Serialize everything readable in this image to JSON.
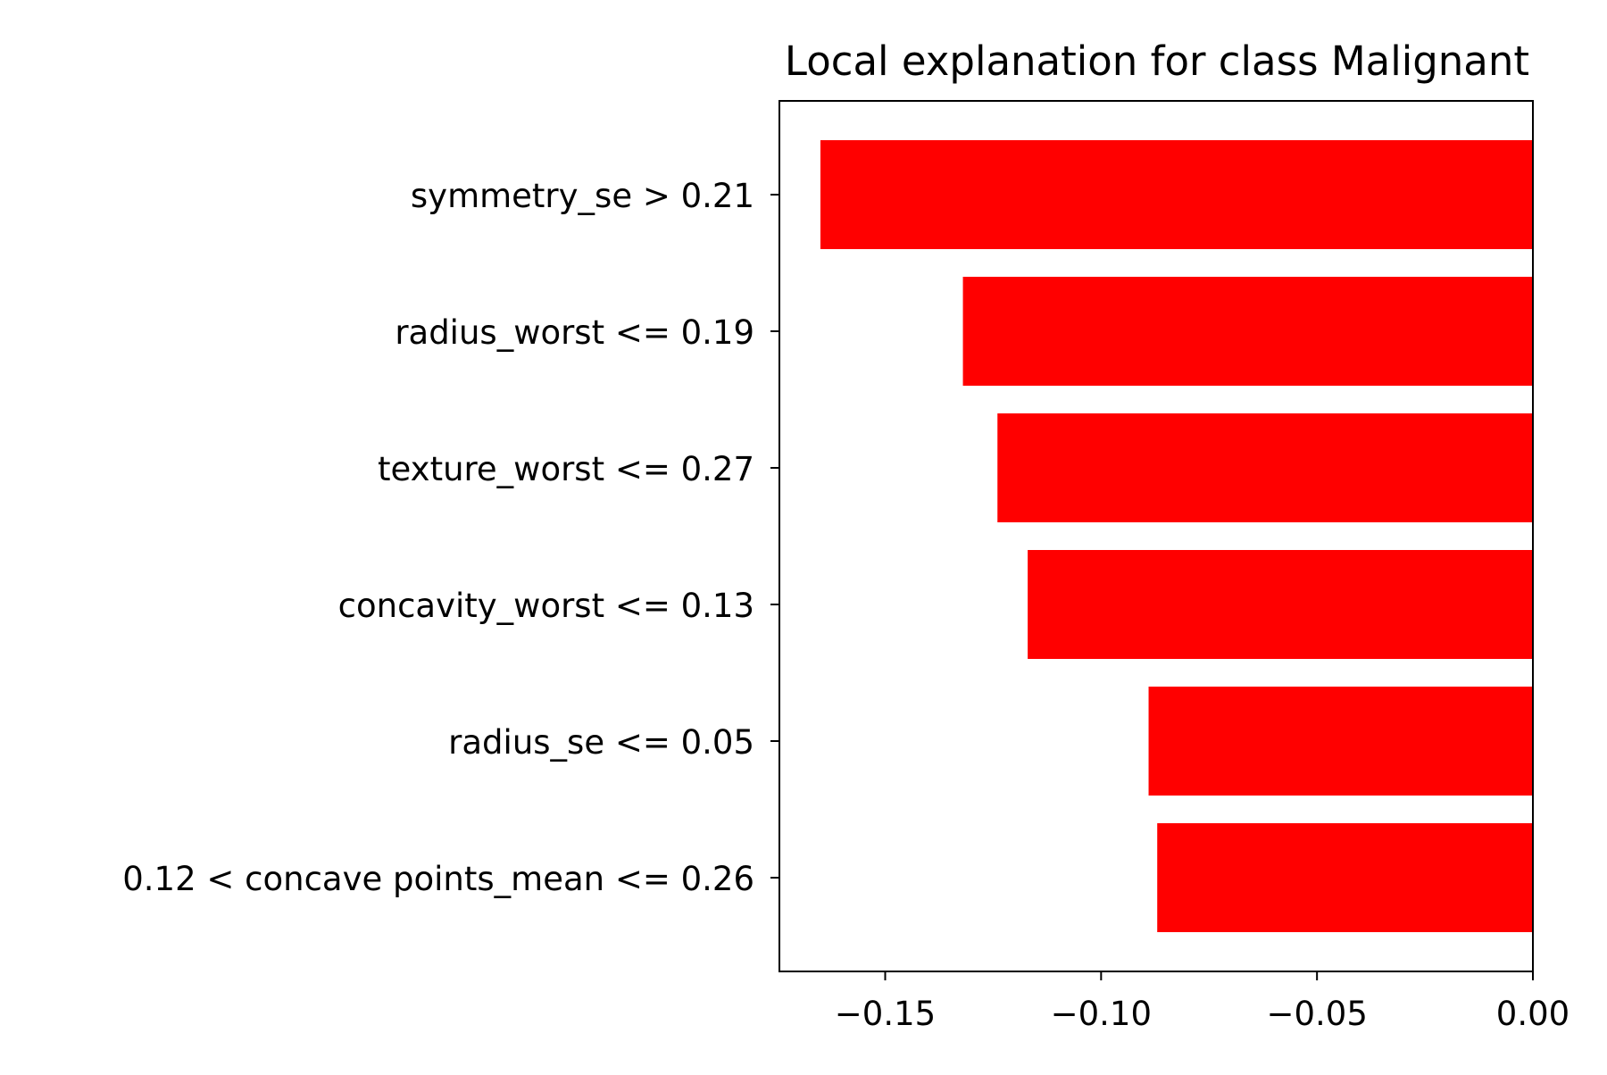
{
  "chart_data": {
    "type": "bar",
    "orientation": "horizontal",
    "title": "Local explanation for class Malignant",
    "xlabel": "",
    "ylabel": "",
    "categories": [
      "symmetry_se > 0.21",
      "radius_worst <= 0.19",
      "texture_worst <= 0.27",
      "concavity_worst <= 0.13",
      "radius_se <= 0.05",
      "0.12 < concave points_mean <= 0.26"
    ],
    "values": [
      -0.165,
      -0.132,
      -0.124,
      -0.117,
      -0.089,
      -0.087
    ],
    "xlim": [
      -0.1745,
      0.0
    ],
    "xticks": [
      -0.15,
      -0.1,
      -0.05,
      0.0
    ],
    "xtick_labels": [
      "−0.15",
      "−0.10",
      "−0.05",
      "0.00"
    ],
    "bar_color": "#ff0000",
    "grid": false
  }
}
